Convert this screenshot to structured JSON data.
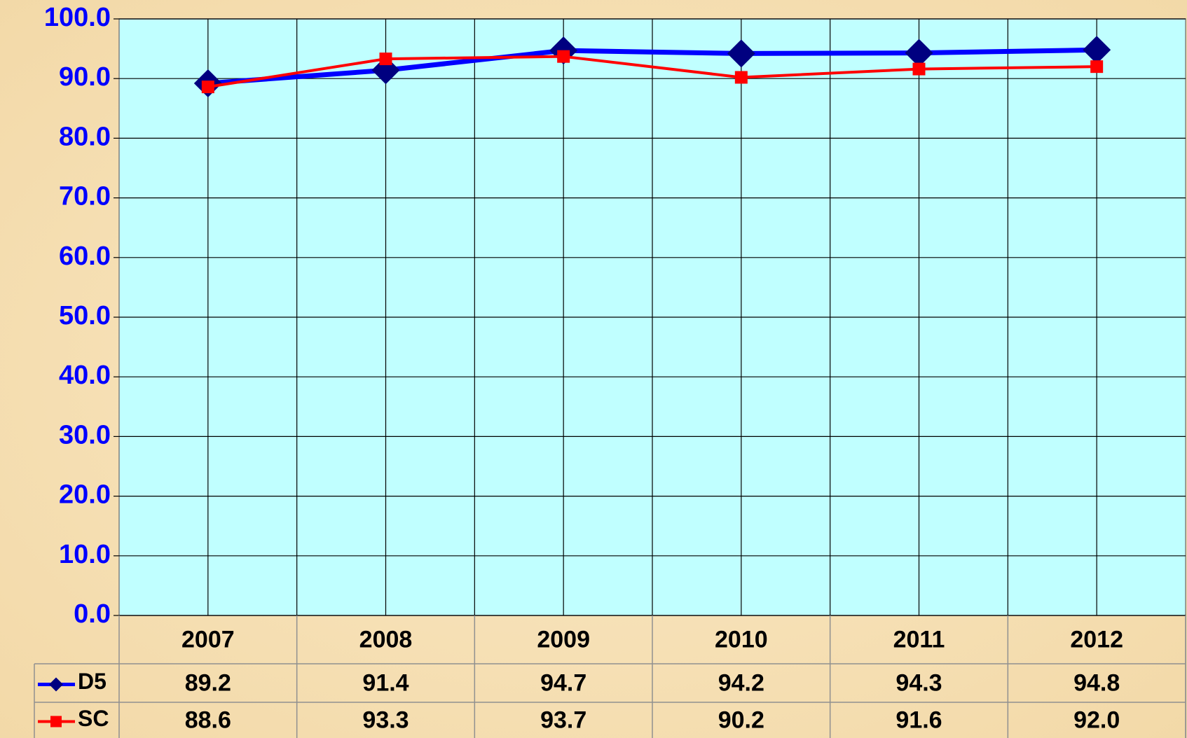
{
  "chart_data": {
    "type": "line",
    "categories": [
      "2007",
      "2008",
      "2009",
      "2010",
      "2011",
      "2012"
    ],
    "series": [
      {
        "name": "D5",
        "color": "#0000ff",
        "marker_color": "#000080",
        "marker": "diamond",
        "values": [
          89.2,
          91.4,
          94.7,
          94.2,
          94.3,
          94.8
        ],
        "value_labels": [
          "89.2",
          "91.4",
          "94.7",
          "94.2",
          "94.3",
          "94.8"
        ]
      },
      {
        "name": "SC",
        "color": "#ff0000",
        "marker_color": "#ff0000",
        "marker": "square",
        "values": [
          88.6,
          93.3,
          93.7,
          90.2,
          91.6,
          92.0
        ],
        "value_labels": [
          "88.6",
          "93.3",
          "93.7",
          "90.2",
          "91.6",
          "92.0"
        ]
      }
    ],
    "ylim": [
      0,
      100
    ],
    "yticks": [
      {
        "value": 0,
        "label": "0.0"
      },
      {
        "value": 10,
        "label": "10.0"
      },
      {
        "value": 20,
        "label": "20.0"
      },
      {
        "value": 30,
        "label": "30.0"
      },
      {
        "value": 40,
        "label": "40.0"
      },
      {
        "value": 50,
        "label": "50.0"
      },
      {
        "value": 60,
        "label": "60.0"
      },
      {
        "value": 70,
        "label": "70.0"
      },
      {
        "value": 80,
        "label": "80.0"
      },
      {
        "value": 90,
        "label": "90.0"
      },
      {
        "value": 100,
        "label": "100.0"
      }
    ],
    "grid": true,
    "data_table": true
  }
}
